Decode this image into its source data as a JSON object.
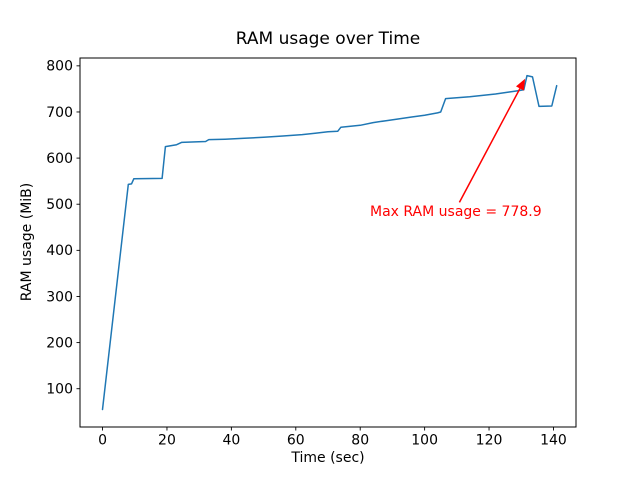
{
  "figure": {
    "background": "#ffffff"
  },
  "chart_data": {
    "type": "line",
    "title": "RAM usage over Time",
    "xlabel": "Time (sec)",
    "ylabel": "RAM usage (MiB)",
    "x": [
      0,
      8,
      9,
      9.7,
      18.5,
      19.5,
      23,
      24.5,
      32,
      33,
      38,
      44,
      50,
      56,
      62,
      66,
      70,
      73,
      74,
      80,
      84,
      88,
      92,
      96,
      100,
      104,
      105,
      106.5,
      110,
      114,
      118,
      122,
      126,
      129,
      130.8,
      131.8,
      133.5,
      135.5,
      139.5,
      141
    ],
    "y": [
      55,
      543,
      544,
      555,
      556,
      625,
      629,
      634,
      636,
      640,
      641,
      643,
      645,
      648,
      651,
      654,
      657,
      658,
      667,
      671,
      677,
      681,
      685,
      689,
      693,
      698,
      700,
      729,
      731,
      733,
      736,
      739,
      743,
      746,
      748,
      778.9,
      776,
      712,
      713,
      757
    ],
    "xlim": [
      -7,
      147
    ],
    "ylim": [
      17,
      817
    ],
    "xticks": [
      0,
      20,
      40,
      60,
      80,
      100,
      120,
      140
    ],
    "yticks": [
      100,
      200,
      300,
      400,
      500,
      600,
      700,
      800
    ],
    "grid": false,
    "legend": null,
    "line_color": "#1f77b4",
    "line_width": 1.5,
    "axes_color": "#000000",
    "annotation": {
      "text": "Max RAM usage = 778.9",
      "color": "#ff0000",
      "xy": [
        131.2,
        772
      ],
      "arrow_tail_xy": [
        110.8,
        504
      ],
      "text_xy": [
        82.9,
        475
      ]
    }
  }
}
